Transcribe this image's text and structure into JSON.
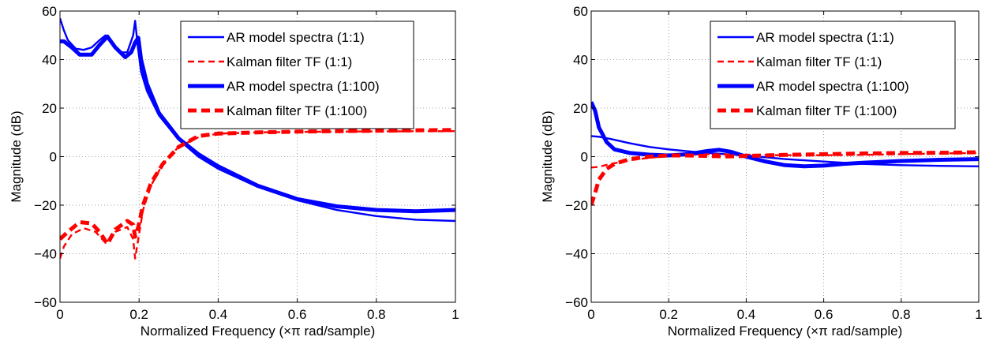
{
  "chart_data": [
    {
      "type": "line",
      "title": "",
      "xlabel": "Normalized Frequency  (×π rad/sample)",
      "ylabel": "Magnitude (dB)",
      "xlim": [
        0,
        1
      ],
      "ylim": [
        -60,
        60
      ],
      "xticks": [
        "0",
        "0.2",
        "0.4",
        "0.6",
        "0.8",
        "1"
      ],
      "yticks": [
        "−60",
        "−40",
        "−20",
        "0",
        "20",
        "40",
        "60"
      ],
      "grid": true,
      "legend_position": "top-right",
      "series": [
        {
          "name": "AR model spectra (1:1)",
          "color": "#0000ff",
          "style": "solid",
          "weight": "thin",
          "x": [
            0,
            0.01,
            0.02,
            0.04,
            0.06,
            0.08,
            0.1,
            0.115,
            0.13,
            0.15,
            0.17,
            0.185,
            0.19,
            0.197,
            0.205,
            0.22,
            0.25,
            0.3,
            0.35,
            0.4,
            0.5,
            0.6,
            0.7,
            0.8,
            0.9,
            1.0
          ],
          "y": [
            57,
            52,
            48,
            44.5,
            44,
            45,
            48,
            50,
            47.5,
            43,
            43,
            50,
            56,
            45,
            35,
            27,
            17,
            7,
            0,
            -5,
            -12.5,
            -18,
            -22,
            -24.5,
            -26,
            -26.5
          ]
        },
        {
          "name": "Kalman filter TF (1:1)",
          "color": "#ff0000",
          "style": "dashed",
          "weight": "thin",
          "x": [
            0,
            0.01,
            0.03,
            0.06,
            0.09,
            0.115,
            0.14,
            0.17,
            0.185,
            0.19,
            0.197,
            0.21,
            0.23,
            0.26,
            0.3,
            0.35,
            0.4,
            0.5,
            0.6,
            0.8,
            1.0
          ],
          "y": [
            -42,
            -37,
            -32,
            -29.5,
            -31,
            -35.5,
            -31,
            -29,
            -34,
            -42,
            -35,
            -22,
            -12,
            -3,
            4,
            8,
            9.5,
            10,
            10.2,
            10.4,
            10.5
          ]
        },
        {
          "name": "AR model spectra (1:100)",
          "color": "#0000ff",
          "style": "solid",
          "weight": "thick",
          "x": [
            0,
            0.01,
            0.03,
            0.05,
            0.08,
            0.1,
            0.12,
            0.14,
            0.165,
            0.18,
            0.19,
            0.198,
            0.205,
            0.22,
            0.25,
            0.3,
            0.35,
            0.4,
            0.5,
            0.6,
            0.7,
            0.8,
            0.9,
            1.0
          ],
          "y": [
            47.5,
            47.5,
            45,
            42,
            42,
            46,
            49.5,
            45,
            41,
            43,
            47,
            49,
            40,
            30,
            18,
            7.5,
            1,
            -4,
            -12,
            -17.5,
            -20.5,
            -22,
            -22.5,
            -22
          ]
        },
        {
          "name": "Kalman filter TF (1:100)",
          "color": "#ff0000",
          "style": "dashed",
          "weight": "thick",
          "x": [
            0,
            0.02,
            0.05,
            0.08,
            0.1,
            0.12,
            0.14,
            0.17,
            0.185,
            0.19,
            0.198,
            0.21,
            0.23,
            0.26,
            0.3,
            0.35,
            0.4,
            0.5,
            0.6,
            0.8,
            1.0
          ],
          "y": [
            -34,
            -31,
            -27,
            -27.5,
            -31,
            -36,
            -30,
            -26.5,
            -28,
            -33,
            -29,
            -20,
            -11,
            -3,
            4,
            8.5,
            9.5,
            10,
            10.3,
            10.7,
            11
          ]
        }
      ]
    },
    {
      "type": "line",
      "title": "",
      "xlabel": "Normalized Frequency  (×π rad/sample)",
      "ylabel": "Magnitude (dB)",
      "xlim": [
        0,
        1
      ],
      "ylim": [
        -60,
        60
      ],
      "xticks": [
        "0",
        "0.2",
        "0.4",
        "0.6",
        "0.8",
        "1"
      ],
      "yticks": [
        "−60",
        "−40",
        "−20",
        "0",
        "20",
        "40",
        "60"
      ],
      "grid": true,
      "legend_position": "top-right",
      "series": [
        {
          "name": "AR model spectra (1:1)",
          "color": "#0000ff",
          "style": "solid",
          "weight": "thin",
          "x": [
            0,
            0.02,
            0.05,
            0.1,
            0.15,
            0.2,
            0.25,
            0.3,
            0.4,
            0.5,
            0.6,
            0.7,
            0.8,
            0.9,
            1.0
          ],
          "y": [
            8.5,
            8.2,
            7.3,
            5.5,
            4,
            3,
            2.2,
            1.5,
            0.5,
            -1,
            -2,
            -3,
            -3.5,
            -3.8,
            -4
          ]
        },
        {
          "name": "Kalman filter TF (1:1)",
          "color": "#ff0000",
          "style": "dashed",
          "weight": "thin",
          "x": [
            0,
            0.02,
            0.05,
            0.1,
            0.15,
            0.2,
            0.25,
            0.3,
            0.4,
            0.5,
            0.6,
            0.7,
            0.8,
            0.9,
            1.0
          ],
          "y": [
            -4.5,
            -4.2,
            -3,
            -1.5,
            -0.5,
            0.3,
            0.8,
            1,
            0.8,
            0.6,
            0.6,
            0.7,
            1,
            1.3,
            1.5
          ]
        },
        {
          "name": "AR model spectra (1:100)",
          "color": "#0000ff",
          "style": "solid",
          "weight": "thick",
          "x": [
            0,
            0.01,
            0.02,
            0.04,
            0.06,
            0.1,
            0.15,
            0.2,
            0.25,
            0.3,
            0.33,
            0.36,
            0.4,
            0.45,
            0.5,
            0.55,
            0.6,
            0.65,
            0.7,
            0.8,
            0.9,
            1.0
          ],
          "y": [
            22.5,
            19,
            12,
            6,
            3,
            1.5,
            0.8,
            0.5,
            1,
            2.3,
            2.8,
            2,
            0,
            -2,
            -3.5,
            -4,
            -3.7,
            -3,
            -2.5,
            -1.8,
            -1.3,
            -1
          ]
        },
        {
          "name": "Kalman filter TF (1:100)",
          "color": "#ff0000",
          "style": "dashed",
          "weight": "thick",
          "x": [
            0,
            0.01,
            0.02,
            0.04,
            0.06,
            0.1,
            0.15,
            0.2,
            0.25,
            0.3,
            0.35,
            0.4,
            0.5,
            0.6,
            0.7,
            0.8,
            0.9,
            1.0
          ],
          "y": [
            -20,
            -15,
            -9.5,
            -5,
            -3,
            -1,
            0,
            0.5,
            0.5,
            0.3,
            0.1,
            0.3,
            0.7,
            1,
            1.3,
            1.5,
            1.6,
            1.8
          ]
        }
      ]
    }
  ]
}
